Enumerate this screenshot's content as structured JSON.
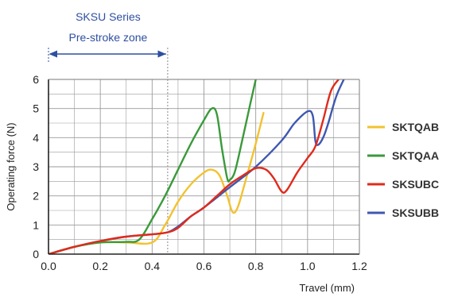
{
  "chart_data": {
    "type": "line",
    "xlabel": "Travel (mm)",
    "ylabel": "Operating force (N)",
    "xlim": [
      0,
      1.2
    ],
    "ylim": [
      0,
      6
    ],
    "x_ticks": [
      "0.0",
      "0.2",
      "0.4",
      "0.6",
      "0.8",
      "1.0",
      "1.2"
    ],
    "y_ticks": [
      "0",
      "1",
      "2",
      "3",
      "4",
      "5",
      "6"
    ],
    "grid": true,
    "legend_position": "right",
    "annotation": {
      "line1": "SKSU Series",
      "line2": "Pre-stroke zone",
      "color": "#2e4fa0",
      "x_start": 0.0,
      "x_end": 0.46
    },
    "series": [
      {
        "name": "SKTQAB",
        "color": "#f2c230",
        "points": [
          [
            0,
            0
          ],
          [
            0.1,
            0.25
          ],
          [
            0.2,
            0.4
          ],
          [
            0.3,
            0.4
          ],
          [
            0.4,
            0.4
          ],
          [
            0.45,
            1.0
          ],
          [
            0.5,
            1.8
          ],
          [
            0.55,
            2.4
          ],
          [
            0.6,
            2.8
          ],
          [
            0.63,
            2.9
          ],
          [
            0.66,
            2.7
          ],
          [
            0.69,
            2.0
          ],
          [
            0.71,
            1.45
          ],
          [
            0.73,
            1.6
          ],
          [
            0.76,
            2.5
          ],
          [
            0.8,
            3.8
          ],
          [
            0.83,
            4.85
          ]
        ]
      },
      {
        "name": "SKTQAA",
        "color": "#3a9a3a",
        "points": [
          [
            0,
            0
          ],
          [
            0.1,
            0.25
          ],
          [
            0.2,
            0.4
          ],
          [
            0.3,
            0.42
          ],
          [
            0.35,
            0.5
          ],
          [
            0.4,
            1.2
          ],
          [
            0.45,
            2.0
          ],
          [
            0.5,
            2.9
          ],
          [
            0.55,
            3.8
          ],
          [
            0.6,
            4.6
          ],
          [
            0.63,
            5.0
          ],
          [
            0.65,
            4.8
          ],
          [
            0.67,
            3.6
          ],
          [
            0.69,
            2.6
          ],
          [
            0.7,
            2.55
          ],
          [
            0.72,
            2.85
          ],
          [
            0.75,
            4.0
          ],
          [
            0.78,
            5.2
          ],
          [
            0.8,
            6.0
          ]
        ]
      },
      {
        "name": "SKSUBC",
        "color": "#e02a1c",
        "points": [
          [
            0,
            0
          ],
          [
            0.1,
            0.25
          ],
          [
            0.2,
            0.45
          ],
          [
            0.3,
            0.6
          ],
          [
            0.4,
            0.68
          ],
          [
            0.46,
            0.75
          ],
          [
            0.5,
            0.9
          ],
          [
            0.55,
            1.3
          ],
          [
            0.6,
            1.6
          ],
          [
            0.65,
            2.0
          ],
          [
            0.7,
            2.4
          ],
          [
            0.75,
            2.7
          ],
          [
            0.8,
            2.95
          ],
          [
            0.84,
            2.9
          ],
          [
            0.87,
            2.6
          ],
          [
            0.9,
            2.15
          ],
          [
            0.92,
            2.2
          ],
          [
            0.96,
            2.8
          ],
          [
            1.0,
            3.3
          ],
          [
            1.03,
            3.7
          ],
          [
            1.06,
            4.6
          ],
          [
            1.09,
            5.6
          ],
          [
            1.12,
            6.0
          ]
        ]
      },
      {
        "name": "SKSUBB",
        "color": "#3e58b0",
        "points": [
          [
            0,
            0
          ],
          [
            0.1,
            0.25
          ],
          [
            0.2,
            0.45
          ],
          [
            0.3,
            0.6
          ],
          [
            0.4,
            0.68
          ],
          [
            0.46,
            0.75
          ],
          [
            0.5,
            0.95
          ],
          [
            0.55,
            1.3
          ],
          [
            0.6,
            1.6
          ],
          [
            0.7,
            2.3
          ],
          [
            0.8,
            3.0
          ],
          [
            0.9,
            3.9
          ],
          [
            0.95,
            4.5
          ],
          [
            1.0,
            4.9
          ],
          [
            1.02,
            4.75
          ],
          [
            1.03,
            3.9
          ],
          [
            1.04,
            3.75
          ],
          [
            1.06,
            4.0
          ],
          [
            1.08,
            4.5
          ],
          [
            1.11,
            5.4
          ],
          [
            1.14,
            6.0
          ]
        ]
      }
    ]
  }
}
